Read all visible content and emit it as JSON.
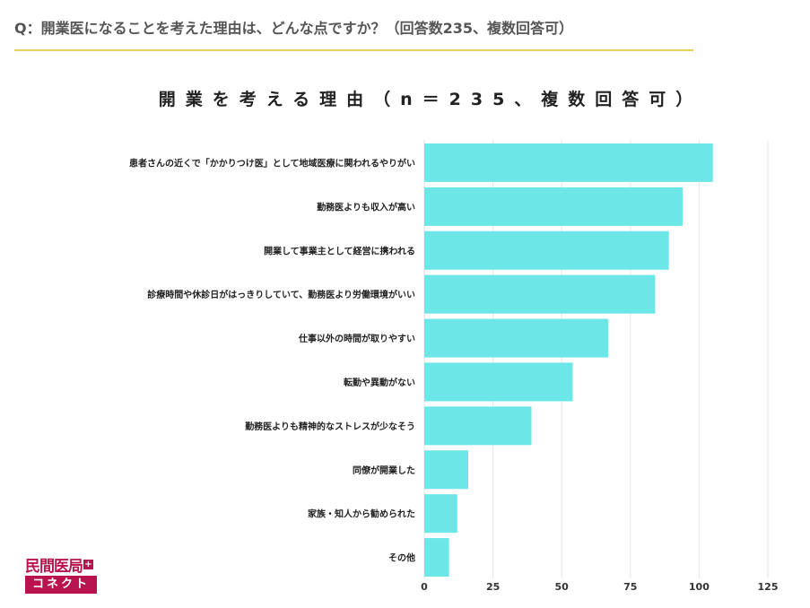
{
  "header": {
    "question": "Q：開業医になることを考えた理由は、どんな点ですか？（回答数235、複数回答可）"
  },
  "logo": {
    "line1": "民間医局",
    "plus_mark": "+",
    "line2": "コネクト",
    "brand_color": "#b8124f"
  },
  "colors": {
    "bar": "#6de6e8",
    "accent_rule": "#e2cc5a",
    "grid": "#e6e6e6"
  },
  "chart_data": {
    "type": "bar",
    "orientation": "horizontal",
    "title": "開業を考える理由（n＝235、複数回答可）",
    "categories": [
      "患者さんの近くで「かかりつけ医」として地域医療に関われるやりがい",
      "勤務医よりも収入が高い",
      "開業して事業主として経営に携われる",
      "診療時間や休診日がはっきりしていて、勤務医より労働環境がいい",
      "仕事以外の時間が取りやすい",
      "転勤や異動がない",
      "勤務医よりも精神的なストレスが少なそう",
      "同僚が開業した",
      "家族・知人から勧められた",
      "その他"
    ],
    "values": [
      105,
      94,
      89,
      84,
      67,
      54,
      39,
      16,
      12,
      9
    ],
    "xlim": [
      0,
      125
    ],
    "x_ticks": [
      0,
      25,
      50,
      75,
      100,
      125
    ],
    "grid": true,
    "legend": "none"
  }
}
